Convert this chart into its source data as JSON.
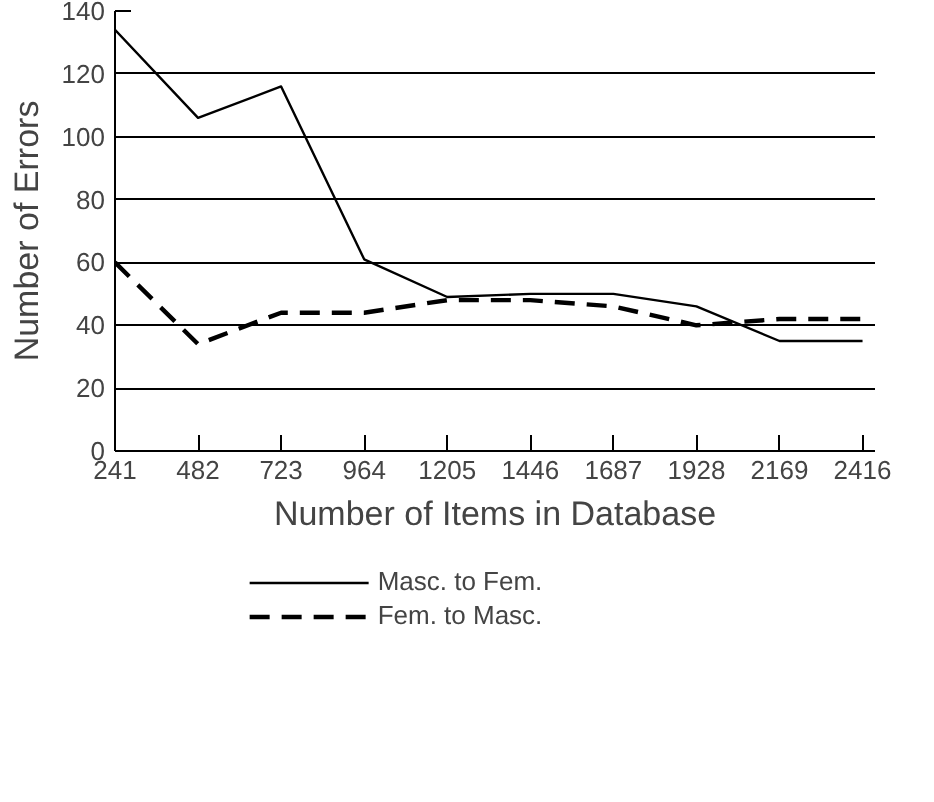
{
  "chart_data": {
    "type": "line",
    "xlabel": "Number of Items in Database",
    "ylabel": "Number of Errors",
    "categories": [
      "241",
      "482",
      "723",
      "964",
      "1205",
      "1446",
      "1687",
      "1928",
      "2169",
      "2416"
    ],
    "ylim": [
      0,
      140
    ],
    "yticks": [
      0,
      20,
      40,
      60,
      80,
      100,
      120,
      140
    ],
    "grid": "y",
    "legend": "bottom",
    "marker": "none",
    "series": [
      {
        "name": "Masc. to Fem.",
        "color": "#000000",
        "line_style": "solid",
        "values": [
          134,
          106,
          116,
          61,
          49,
          50,
          50,
          46,
          35,
          35
        ]
      },
      {
        "name": "Fem. to Masc.",
        "color": "#000000",
        "line_style": "dashed",
        "values": [
          60,
          34,
          44,
          44,
          48,
          48,
          46,
          40,
          42,
          42
        ]
      }
    ]
  }
}
